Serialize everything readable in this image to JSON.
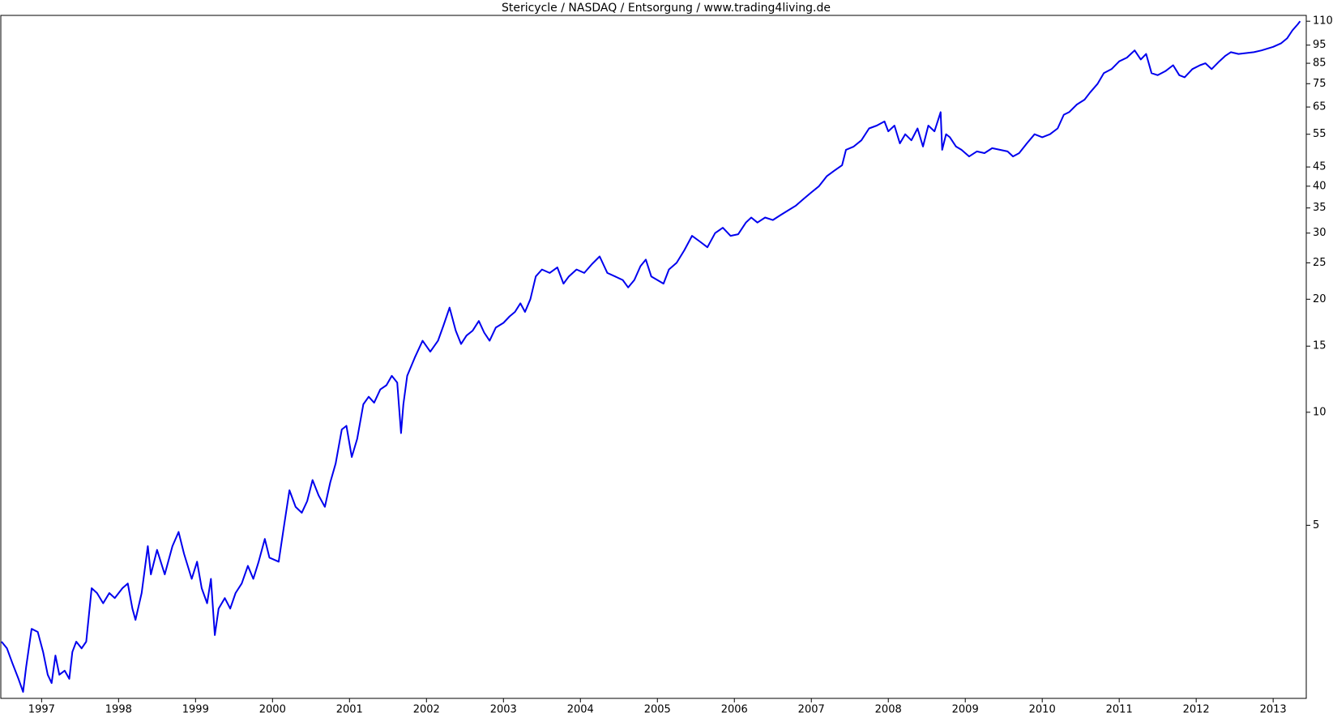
{
  "chart_data": {
    "type": "line",
    "title": "Stericycle / NASDAQ / Entsorgung / www.trading4living.de",
    "color": "#0000ee",
    "y_scale": "log",
    "y_axis_side": "right",
    "xlim": [
      1996.47,
      2013.43
    ],
    "xticks": [
      1997,
      1998,
      1999,
      2000,
      2001,
      2002,
      2003,
      2004,
      2005,
      2006,
      2007,
      2008,
      2009,
      2010,
      2011,
      2012,
      2013
    ],
    "ylim": [
      1.73,
      114
    ],
    "yticks": [
      110,
      95,
      85,
      75,
      65,
      55,
      45,
      40,
      35,
      30,
      25,
      20,
      15,
      10,
      5
    ],
    "x": [
      1996.48,
      1996.55,
      1996.62,
      1996.7,
      1996.76,
      1996.8,
      1996.87,
      1996.95,
      1997.02,
      1997.08,
      1997.13,
      1997.18,
      1997.23,
      1997.3,
      1997.36,
      1997.4,
      1997.45,
      1997.52,
      1997.58,
      1997.65,
      1997.72,
      1997.8,
      1997.88,
      1997.95,
      1998.05,
      1998.12,
      1998.18,
      1998.22,
      1998.3,
      1998.38,
      1998.42,
      1998.5,
      1998.6,
      1998.7,
      1998.78,
      1998.85,
      1998.95,
      1999.02,
      1999.08,
      1999.15,
      1999.2,
      1999.25,
      1999.3,
      1999.38,
      1999.45,
      1999.52,
      1999.6,
      1999.68,
      1999.75,
      1999.82,
      1999.9,
      1999.96,
      2000.08,
      2000.15,
      2000.22,
      2000.3,
      2000.38,
      2000.45,
      2000.52,
      2000.6,
      2000.68,
      2000.75,
      2000.82,
      2000.9,
      2000.96,
      2001.03,
      2001.1,
      2001.18,
      2001.25,
      2001.32,
      2001.4,
      2001.48,
      2001.55,
      2001.62,
      2001.67,
      2001.7,
      2001.75,
      2001.85,
      2001.95,
      2002.05,
      2002.15,
      2002.22,
      2002.3,
      2002.38,
      2002.45,
      2002.52,
      2002.6,
      2002.68,
      2002.75,
      2002.82,
      2002.9,
      2003.0,
      2003.08,
      2003.15,
      2003.22,
      2003.28,
      2003.35,
      2003.42,
      2003.5,
      2003.6,
      2003.7,
      2003.78,
      2003.85,
      2003.95,
      2004.05,
      2004.15,
      2004.25,
      2004.35,
      2004.45,
      2004.55,
      2004.62,
      2004.7,
      2004.78,
      2004.85,
      2004.92,
      2005.0,
      2005.08,
      2005.15,
      2005.25,
      2005.35,
      2005.45,
      2005.55,
      2005.65,
      2005.75,
      2005.85,
      2005.95,
      2006.05,
      2006.15,
      2006.22,
      2006.3,
      2006.4,
      2006.5,
      2006.6,
      2006.7,
      2006.8,
      2006.9,
      2007.0,
      2007.1,
      2007.2,
      2007.3,
      2007.4,
      2007.45,
      2007.55,
      2007.65,
      2007.75,
      2007.85,
      2007.95,
      2008.0,
      2008.08,
      2008.15,
      2008.22,
      2008.3,
      2008.38,
      2008.45,
      2008.52,
      2008.6,
      2008.68,
      2008.7,
      2008.75,
      2008.8,
      2008.88,
      2008.95,
      2009.05,
      2009.15,
      2009.25,
      2009.35,
      2009.45,
      2009.55,
      2009.62,
      2009.7,
      2009.8,
      2009.9,
      2010.0,
      2010.1,
      2010.2,
      2010.28,
      2010.35,
      2010.45,
      2010.55,
      2010.62,
      2010.72,
      2010.8,
      2010.9,
      2011.0,
      2011.1,
      2011.2,
      2011.28,
      2011.35,
      2011.42,
      2011.5,
      2011.6,
      2011.7,
      2011.78,
      2011.85,
      2011.95,
      2012.05,
      2012.12,
      2012.2,
      2012.3,
      2012.38,
      2012.45,
      2012.55,
      2012.65,
      2012.75,
      2012.85,
      2013.0,
      2013.1,
      2013.18,
      2013.25,
      2013.32,
      2013.35
    ],
    "values": [
      2.45,
      2.35,
      2.15,
      1.95,
      1.8,
      2.1,
      2.65,
      2.6,
      2.3,
      2.0,
      1.9,
      2.25,
      2.0,
      2.05,
      1.95,
      2.3,
      2.45,
      2.35,
      2.45,
      3.4,
      3.3,
      3.1,
      3.3,
      3.2,
      3.4,
      3.5,
      3.0,
      2.8,
      3.3,
      4.4,
      3.7,
      4.3,
      3.7,
      4.4,
      4.8,
      4.2,
      3.6,
      4.0,
      3.4,
      3.1,
      3.6,
      2.55,
      3.0,
      3.2,
      3.0,
      3.3,
      3.5,
      3.9,
      3.6,
      4.0,
      4.6,
      4.1,
      4.0,
      5.0,
      6.2,
      5.6,
      5.4,
      5.8,
      6.6,
      6.0,
      5.6,
      6.5,
      7.3,
      9.0,
      9.2,
      7.6,
      8.5,
      10.5,
      11.0,
      10.6,
      11.5,
      11.8,
      12.5,
      12.0,
      8.8,
      10.5,
      12.5,
      14.0,
      15.5,
      14.5,
      15.5,
      17.0,
      19.0,
      16.5,
      15.2,
      16.0,
      16.5,
      17.5,
      16.3,
      15.5,
      16.8,
      17.3,
      18.0,
      18.5,
      19.5,
      18.5,
      20.0,
      23.0,
      24.0,
      23.5,
      24.3,
      22.0,
      23.0,
      24.0,
      23.5,
      24.8,
      26.0,
      23.5,
      23.0,
      22.5,
      21.5,
      22.5,
      24.5,
      25.5,
      23.0,
      22.5,
      22.0,
      24.0,
      25.0,
      27.0,
      29.5,
      28.5,
      27.5,
      30.0,
      31.0,
      29.5,
      29.8,
      32.0,
      33.0,
      32.0,
      33.0,
      32.5,
      33.5,
      34.5,
      35.5,
      37.0,
      38.5,
      40.0,
      42.5,
      44.0,
      45.5,
      50.0,
      51.0,
      53.0,
      57.0,
      58.0,
      59.5,
      56.0,
      58.0,
      52.0,
      55.0,
      53.0,
      57.0,
      51.0,
      58.0,
      56.0,
      63.0,
      50.0,
      55.0,
      54.0,
      51.0,
      50.0,
      48.0,
      49.5,
      49.0,
      50.5,
      50.0,
      49.5,
      48.0,
      49.0,
      52.0,
      55.0,
      54.0,
      55.0,
      57.0,
      62.0,
      63.0,
      66.0,
      68.0,
      71.0,
      75.0,
      80.0,
      82.0,
      86.0,
      88.0,
      92.0,
      87.0,
      90.0,
      80.0,
      79.0,
      81.0,
      84.0,
      79.0,
      78.0,
      82.0,
      84.0,
      85.0,
      82.0,
      86.0,
      89.0,
      91.0,
      90.0,
      90.5,
      91.0,
      92.0,
      94.0,
      96.0,
      99.0,
      104.0,
      108.0,
      110.0
    ]
  }
}
